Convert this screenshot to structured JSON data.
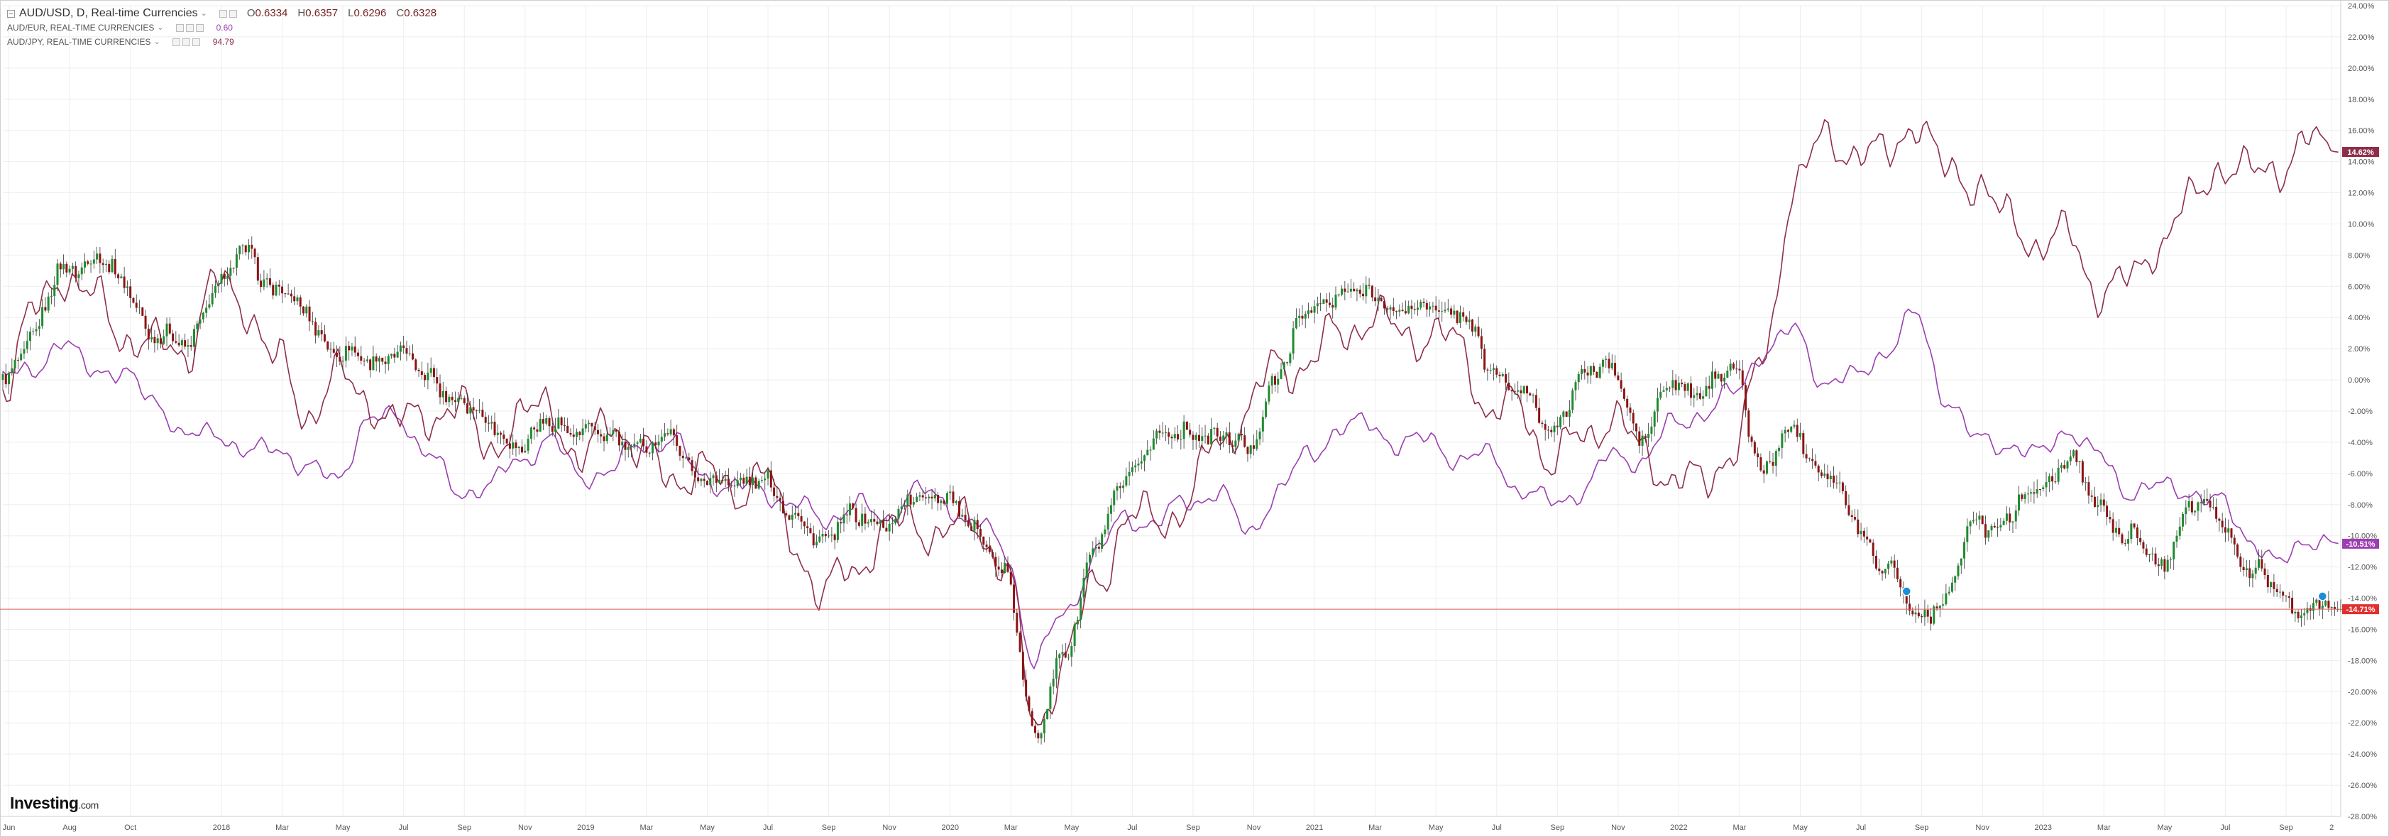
{
  "legend": {
    "main_title": "AUD/USD, D, Real-time Currencies",
    "open_label": "O",
    "open": "0.6334",
    "high_label": "H",
    "high": "0.6357",
    "low_label": "L",
    "low": "0.6296",
    "close_label": "C",
    "close": "0.6328",
    "series": [
      {
        "name": "AUD/EUR, REAL-TIME CURRENCIES",
        "value": "0.60",
        "color": "#9b3fb0"
      },
      {
        "name": "AUD/JPY, REAL-TIME CURRENCIES",
        "value": "94.79",
        "color": "#8e2f4a"
      }
    ]
  },
  "logo": {
    "brand": "Investing",
    "suffix": ".com"
  },
  "colors": {
    "up": "#1e8c2e",
    "down": "#8c1414",
    "wick": "#333333",
    "eur": "#9b3fb0",
    "jpy": "#8e2f4a",
    "price_line": "#e05a5a",
    "grid": "#eeeeee",
    "axis": "#cccccc"
  },
  "chart_data": {
    "type": "line",
    "title": "AUD/USD, D, Real-time Currencies",
    "y_axis": {
      "unit": "%",
      "min": -28,
      "max": 24,
      "step": 2,
      "position": "right"
    },
    "y_ticks": [
      "24.00%",
      "22.00%",
      "20.00%",
      "18.00%",
      "16.00%",
      "14.00%",
      "12.00%",
      "10.00%",
      "8.00%",
      "6.00%",
      "4.00%",
      "2.00%",
      "0.00%",
      "-2.00%",
      "-4.00%",
      "-6.00%",
      "-8.00%",
      "-10.00%",
      "-12.00%",
      "-14.00%",
      "-16.00%",
      "-18.00%",
      "-20.00%",
      "-22.00%",
      "-24.00%",
      "-26.00%",
      "-28.00%"
    ],
    "x_ticks": [
      {
        "label": "Jun",
        "t": 0.2
      },
      {
        "label": "Aug",
        "t": 2.2
      },
      {
        "label": "Oct",
        "t": 4.2
      },
      {
        "label": "2018",
        "t": 7.2
      },
      {
        "label": "Mar",
        "t": 9.2
      },
      {
        "label": "May",
        "t": 11.2
      },
      {
        "label": "Jul",
        "t": 13.2
      },
      {
        "label": "Sep",
        "t": 15.2
      },
      {
        "label": "Nov",
        "t": 17.2
      },
      {
        "label": "2019",
        "t": 19.2
      },
      {
        "label": "Mar",
        "t": 21.2
      },
      {
        "label": "May",
        "t": 23.2
      },
      {
        "label": "Jul",
        "t": 25.2
      },
      {
        "label": "Sep",
        "t": 27.2
      },
      {
        "label": "Nov",
        "t": 29.2
      },
      {
        "label": "2020",
        "t": 31.2
      },
      {
        "label": "Mar",
        "t": 33.2
      },
      {
        "label": "May",
        "t": 35.2
      },
      {
        "label": "Jul",
        "t": 37.2
      },
      {
        "label": "Sep",
        "t": 39.2
      },
      {
        "label": "Nov",
        "t": 41.2
      },
      {
        "label": "2021",
        "t": 43.2
      },
      {
        "label": "Mar",
        "t": 45.2
      },
      {
        "label": "May",
        "t": 47.2
      },
      {
        "label": "Jul",
        "t": 49.2
      },
      {
        "label": "Sep",
        "t": 51.2
      },
      {
        "label": "Nov",
        "t": 53.2
      },
      {
        "label": "2022",
        "t": 55.2
      },
      {
        "label": "Mar",
        "t": 57.2
      },
      {
        "label": "May",
        "t": 59.2
      },
      {
        "label": "Jul",
        "t": 61.2
      },
      {
        "label": "Sep",
        "t": 63.2
      },
      {
        "label": "Nov",
        "t": 65.2
      },
      {
        "label": "2023",
        "t": 67.2
      },
      {
        "label": "Mar",
        "t": 69.2
      },
      {
        "label": "May",
        "t": 71.2
      },
      {
        "label": "Jul",
        "t": 73.2
      },
      {
        "label": "Sep",
        "t": 75.2
      },
      {
        "label": "2",
        "t": 76.7
      }
    ],
    "t_range": [
      0,
      77
    ],
    "series": [
      {
        "name": "AUD/USD",
        "style": "candlestick",
        "points": [
          [
            0,
            0
          ],
          [
            1,
            3
          ],
          [
            2,
            7
          ],
          [
            3,
            8
          ],
          [
            4,
            6
          ],
          [
            5,
            3
          ],
          [
            6,
            2
          ],
          [
            7,
            6
          ],
          [
            8,
            8
          ],
          [
            9,
            6
          ],
          [
            10,
            4
          ],
          [
            11,
            2
          ],
          [
            12,
            1
          ],
          [
            13,
            2
          ],
          [
            14,
            0
          ],
          [
            15,
            -1
          ],
          [
            16,
            -3
          ],
          [
            17,
            -4
          ],
          [
            18,
            -3
          ],
          [
            19,
            -3
          ],
          [
            20,
            -4
          ],
          [
            21,
            -4
          ],
          [
            22,
            -4
          ],
          [
            23,
            -6
          ],
          [
            24,
            -7
          ],
          [
            25,
            -6
          ],
          [
            26,
            -9
          ],
          [
            27,
            -10
          ],
          [
            28,
            -9
          ],
          [
            29,
            -9
          ],
          [
            30,
            -8
          ],
          [
            31,
            -7
          ],
          [
            32,
            -10
          ],
          [
            33,
            -12
          ],
          [
            34,
            -23
          ],
          [
            35,
            -17
          ],
          [
            36,
            -11
          ],
          [
            37,
            -6
          ],
          [
            38,
            -4
          ],
          [
            39,
            -3
          ],
          [
            40,
            -4
          ],
          [
            41,
            -4
          ],
          [
            42,
            0
          ],
          [
            43,
            5
          ],
          [
            44,
            5
          ],
          [
            45,
            6
          ],
          [
            46,
            4
          ],
          [
            47,
            5
          ],
          [
            48,
            4
          ],
          [
            49,
            1
          ],
          [
            50,
            -1
          ],
          [
            51,
            -3
          ],
          [
            52,
            0
          ],
          [
            53,
            1
          ],
          [
            54,
            -4
          ],
          [
            55,
            0
          ],
          [
            56,
            -1
          ],
          [
            57,
            1
          ],
          [
            58,
            -6
          ],
          [
            59,
            -3
          ],
          [
            60,
            -6
          ],
          [
            61,
            -9
          ],
          [
            62,
            -12
          ],
          [
            63,
            -15
          ],
          [
            64,
            -14
          ],
          [
            65,
            -9
          ],
          [
            66,
            -9
          ],
          [
            67,
            -7
          ],
          [
            68,
            -5
          ],
          [
            69,
            -8
          ],
          [
            70,
            -10
          ],
          [
            71,
            -12
          ],
          [
            72,
            -8
          ],
          [
            73,
            -9
          ],
          [
            74,
            -12
          ],
          [
            75,
            -14
          ],
          [
            76,
            -14.7
          ],
          [
            77,
            -14.7
          ]
        ]
      },
      {
        "name": "AUD/EUR",
        "style": "line",
        "points": [
          [
            0,
            0
          ],
          [
            1,
            1
          ],
          [
            2,
            2
          ],
          [
            3,
            1
          ],
          [
            4,
            0
          ],
          [
            5,
            -1
          ],
          [
            6,
            -4
          ],
          [
            7,
            -3
          ],
          [
            8,
            -5
          ],
          [
            9,
            -4
          ],
          [
            10,
            -6
          ],
          [
            11,
            -6
          ],
          [
            12,
            -3
          ],
          [
            13,
            -2
          ],
          [
            14,
            -5
          ],
          [
            15,
            -7
          ],
          [
            16,
            -7
          ],
          [
            17,
            -5
          ],
          [
            18,
            -4
          ],
          [
            19,
            -6
          ],
          [
            20,
            -6
          ],
          [
            21,
            -4
          ],
          [
            22,
            -4
          ],
          [
            23,
            -6
          ],
          [
            24,
            -7
          ],
          [
            25,
            -7
          ],
          [
            26,
            -8
          ],
          [
            27,
            -9
          ],
          [
            28,
            -8
          ],
          [
            29,
            -9
          ],
          [
            30,
            -7
          ],
          [
            31,
            -8
          ],
          [
            32,
            -9
          ],
          [
            33,
            -11
          ],
          [
            34,
            -18
          ],
          [
            35,
            -15
          ],
          [
            36,
            -11
          ],
          [
            37,
            -9
          ],
          [
            38,
            -9
          ],
          [
            39,
            -8
          ],
          [
            40,
            -7
          ],
          [
            41,
            -10
          ],
          [
            42,
            -7
          ],
          [
            43,
            -5
          ],
          [
            44,
            -3
          ],
          [
            45,
            -3
          ],
          [
            46,
            -4
          ],
          [
            47,
            -4
          ],
          [
            48,
            -5
          ],
          [
            49,
            -5
          ],
          [
            50,
            -7
          ],
          [
            51,
            -8
          ],
          [
            52,
            -7
          ],
          [
            53,
            -5
          ],
          [
            54,
            -5
          ],
          [
            55,
            -3
          ],
          [
            56,
            -2
          ],
          [
            57,
            -1
          ],
          [
            58,
            2
          ],
          [
            59,
            3
          ],
          [
            60,
            0
          ],
          [
            61,
            0
          ],
          [
            62,
            2
          ],
          [
            63,
            4
          ],
          [
            64,
            -1
          ],
          [
            65,
            -4
          ],
          [
            66,
            -4
          ],
          [
            67,
            -5
          ],
          [
            68,
            -3
          ],
          [
            69,
            -5
          ],
          [
            70,
            -7
          ],
          [
            71,
            -7
          ],
          [
            72,
            -7
          ],
          [
            73,
            -8
          ],
          [
            74,
            -10
          ],
          [
            75,
            -12
          ],
          [
            76,
            -10
          ],
          [
            77,
            -10.5
          ]
        ]
      },
      {
        "name": "AUD/JPY",
        "style": "line",
        "points": [
          [
            0,
            0
          ],
          [
            1,
            4
          ],
          [
            2,
            7
          ],
          [
            3,
            5
          ],
          [
            4,
            3
          ],
          [
            5,
            2
          ],
          [
            6,
            2
          ],
          [
            7,
            6
          ],
          [
            8,
            5
          ],
          [
            9,
            1
          ],
          [
            10,
            -2
          ],
          [
            11,
            0
          ],
          [
            12,
            -1
          ],
          [
            13,
            -3
          ],
          [
            14,
            -2
          ],
          [
            15,
            -2
          ],
          [
            16,
            -4
          ],
          [
            17,
            -3
          ],
          [
            18,
            -1
          ],
          [
            19,
            -6
          ],
          [
            20,
            -2
          ],
          [
            21,
            -5
          ],
          [
            22,
            -6
          ],
          [
            23,
            -6
          ],
          [
            24,
            -7
          ],
          [
            25,
            -6
          ],
          [
            26,
            -10
          ],
          [
            27,
            -14
          ],
          [
            28,
            -12
          ],
          [
            29,
            -10
          ],
          [
            30,
            -9
          ],
          [
            31,
            -10
          ],
          [
            32,
            -9
          ],
          [
            33,
            -12
          ],
          [
            34,
            -22
          ],
          [
            35,
            -18
          ],
          [
            36,
            -13
          ],
          [
            37,
            -9
          ],
          [
            38,
            -9
          ],
          [
            39,
            -8
          ],
          [
            40,
            -4
          ],
          [
            41,
            -2
          ],
          [
            42,
            1
          ],
          [
            43,
            1
          ],
          [
            44,
            3
          ],
          [
            45,
            4
          ],
          [
            46,
            3
          ],
          [
            47,
            3
          ],
          [
            48,
            2
          ],
          [
            49,
            -2
          ],
          [
            50,
            -2
          ],
          [
            51,
            -5
          ],
          [
            52,
            -4
          ],
          [
            53,
            -2
          ],
          [
            54,
            -5
          ],
          [
            55,
            -6
          ],
          [
            56,
            -7
          ],
          [
            57,
            -4
          ],
          [
            58,
            1
          ],
          [
            59,
            13
          ],
          [
            60,
            15
          ],
          [
            61,
            15
          ],
          [
            62,
            14
          ],
          [
            63,
            17
          ],
          [
            64,
            13
          ],
          [
            65,
            13
          ],
          [
            66,
            10
          ],
          [
            67,
            9
          ],
          [
            68,
            9
          ],
          [
            69,
            6
          ],
          [
            70,
            6
          ],
          [
            71,
            9
          ],
          [
            72,
            11
          ],
          [
            73,
            14
          ],
          [
            74,
            13
          ],
          [
            75,
            14
          ],
          [
            76,
            15
          ],
          [
            77,
            14.6
          ]
        ]
      }
    ],
    "end_labels": [
      {
        "series": "AUD/JPY",
        "text": "14.62%",
        "value": 14.62
      },
      {
        "series": "AUD/EUR",
        "text": "-10.51%",
        "value": -10.51
      },
      {
        "series": "AUD/USD",
        "text": "-14.71%",
        "value": -14.71
      }
    ],
    "grid": true,
    "legend_position": "top-left"
  }
}
